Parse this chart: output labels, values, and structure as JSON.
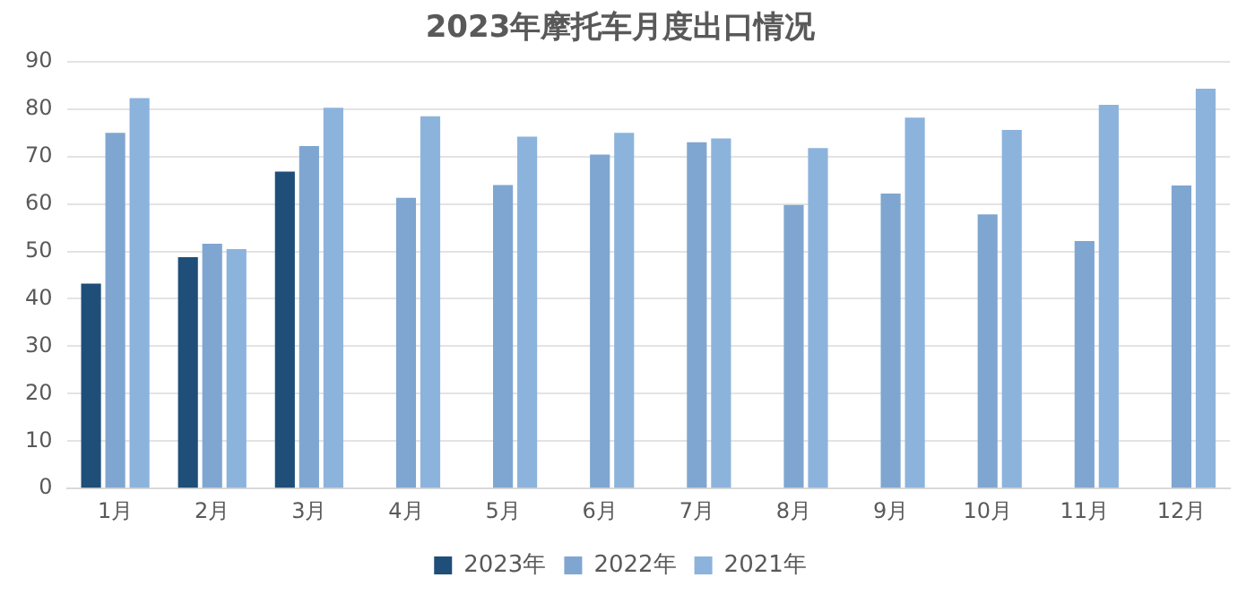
{
  "chart_data": {
    "type": "bar",
    "title": "2023年摩托车月度出口情况",
    "categories": [
      "1月",
      "2月",
      "3月",
      "4月",
      "5月",
      "6月",
      "7月",
      "8月",
      "9月",
      "10月",
      "11月",
      "12月"
    ],
    "series": [
      {
        "name": "2023年",
        "color": "#1f4e79",
        "values": [
          43.2,
          48.8,
          66.8,
          null,
          null,
          null,
          null,
          null,
          null,
          null,
          null,
          null
        ]
      },
      {
        "name": "2022年",
        "color": "#7fa6d0",
        "values": [
          75,
          51.6,
          72.2,
          61.3,
          64,
          70.4,
          73,
          59.8,
          62.2,
          57.8,
          52.2,
          63.9
        ]
      },
      {
        "name": "2021年",
        "color": "#8cb3dc",
        "values": [
          82.3,
          50.5,
          80.3,
          78.5,
          74.2,
          75,
          73.8,
          71.8,
          78.2,
          75.6,
          80.9,
          84.3
        ]
      }
    ],
    "ylim": [
      0,
      90
    ],
    "yticks": [
      0,
      10,
      20,
      30,
      40,
      50,
      60,
      70,
      80,
      90
    ],
    "grid": "y",
    "legend": "bottom"
  }
}
